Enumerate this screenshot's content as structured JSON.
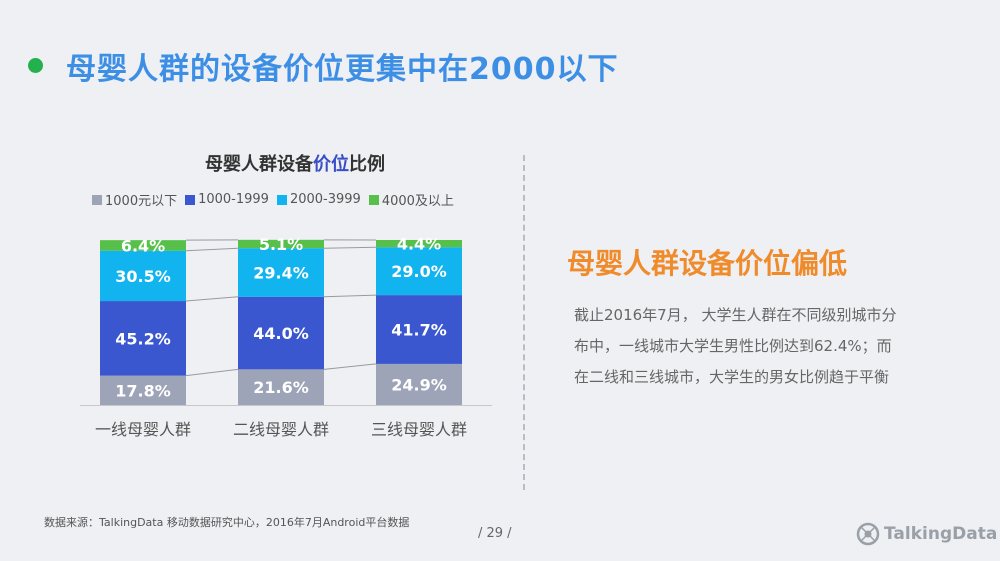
{
  "header": {
    "title": "母婴人群的设备价位更集中在2000以下"
  },
  "chart_data": {
    "type": "bar",
    "stacked": true,
    "percent": true,
    "title_part1": "母婴人群设备",
    "title_part2": "价位",
    "title_part3": "比例",
    "categories": [
      "一线母婴人群",
      "二线母婴人群",
      "三线母婴人群"
    ],
    "series": [
      {
        "name": "1000元以下",
        "color": "#9ea4b8",
        "values": [
          17.8,
          21.6,
          24.9
        ]
      },
      {
        "name": "1000-1999",
        "color": "#3a57cf",
        "values": [
          45.2,
          44.0,
          41.7
        ]
      },
      {
        "name": "2000-3999",
        "color": "#12b4ef",
        "values": [
          30.5,
          29.4,
          29.0
        ]
      },
      {
        "name": "4000及以上",
        "color": "#56c04a",
        "values": [
          6.4,
          5.1,
          4.4
        ]
      }
    ],
    "ylim": [
      0,
      100
    ],
    "legend_position": "top",
    "grid": false
  },
  "side": {
    "heading": "母婴人群设备价位偏低",
    "lines": [
      "截止2016年7月，  大学生人群在不同级别城市分",
      "布中，一线城市大学生男性比例达到62.4%；而",
      "在二线和三线城市，大学生的男女比例趋于平衡"
    ]
  },
  "footer": {
    "source": "数据来源：TalkingData 移动数据研究中心，2016年7月Android平台数据",
    "page": "/  29  /",
    "logo_text": "TalkingData",
    "logo_icon": "talkingdata-logo-icon"
  }
}
